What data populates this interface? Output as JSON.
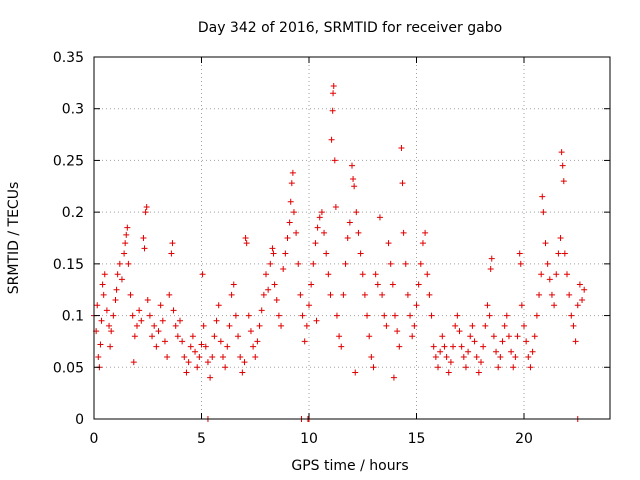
{
  "chart_data": {
    "type": "scatter",
    "title": "Day 342 of 2016, SRMTID for receiver gabo",
    "xlabel": "GPS time / hours",
    "ylabel": "SRMTID / TECUs",
    "xlim": [
      0,
      24
    ],
    "ylim": [
      0,
      0.35
    ],
    "xticks": [
      0,
      5,
      10,
      15,
      20
    ],
    "xtick_labels": [
      "0",
      "5",
      "10",
      "15",
      "20"
    ],
    "yticks": [
      0,
      0.05,
      0.1,
      0.15,
      0.2,
      0.25,
      0.3,
      0.35
    ],
    "ytick_labels": [
      "0",
      "0.05",
      "0.1",
      "0.15",
      "0.2",
      "0.25",
      "0.3",
      "0.35"
    ],
    "grid": true,
    "marker": "+",
    "series": [
      {
        "name": "SRMTID",
        "color": "#e00000",
        "points": [
          [
            0.0,
            0.1
          ],
          [
            0.1,
            0.085
          ],
          [
            0.15,
            0.11
          ],
          [
            0.2,
            0.06
          ],
          [
            0.25,
            0.05
          ],
          [
            0.3,
            0.072
          ],
          [
            0.35,
            0.095
          ],
          [
            0.4,
            0.13
          ],
          [
            0.45,
            0.12
          ],
          [
            0.5,
            0.14
          ],
          [
            0.6,
            0.105
          ],
          [
            0.7,
            0.09
          ],
          [
            0.75,
            0.07
          ],
          [
            0.8,
            0.085
          ],
          [
            0.9,
            0.1
          ],
          [
            1.0,
            0.115
          ],
          [
            1.05,
            0.125
          ],
          [
            1.1,
            0.14
          ],
          [
            1.2,
            0.15
          ],
          [
            1.3,
            0.135
          ],
          [
            1.4,
            0.16
          ],
          [
            1.45,
            0.17
          ],
          [
            1.5,
            0.178
          ],
          [
            1.55,
            0.185
          ],
          [
            1.6,
            0.15
          ],
          [
            1.7,
            0.12
          ],
          [
            1.8,
            0.1
          ],
          [
            1.85,
            0.055
          ],
          [
            1.9,
            0.08
          ],
          [
            2.0,
            0.09
          ],
          [
            2.1,
            0.105
          ],
          [
            2.2,
            0.095
          ],
          [
            2.3,
            0.175
          ],
          [
            2.35,
            0.165
          ],
          [
            2.4,
            0.2
          ],
          [
            2.45,
            0.205
          ],
          [
            2.5,
            0.115
          ],
          [
            2.6,
            0.1
          ],
          [
            2.7,
            0.08
          ],
          [
            2.8,
            0.09
          ],
          [
            2.9,
            0.07
          ],
          [
            3.0,
            0.085
          ],
          [
            3.1,
            0.11
          ],
          [
            3.2,
            0.095
          ],
          [
            3.3,
            0.075
          ],
          [
            3.4,
            0.06
          ],
          [
            3.5,
            0.12
          ],
          [
            3.6,
            0.16
          ],
          [
            3.65,
            0.17
          ],
          [
            3.7,
            0.105
          ],
          [
            3.8,
            0.09
          ],
          [
            3.9,
            0.08
          ],
          [
            4.0,
            0.095
          ],
          [
            4.1,
            0.075
          ],
          [
            4.2,
            0.06
          ],
          [
            4.3,
            0.045
          ],
          [
            4.4,
            0.055
          ],
          [
            4.5,
            0.07
          ],
          [
            4.6,
            0.08
          ],
          [
            4.7,
            0.065
          ],
          [
            4.8,
            0.05
          ],
          [
            4.9,
            0.06
          ],
          [
            5.0,
            0.072
          ],
          [
            5.05,
            0.14
          ],
          [
            5.1,
            0.09
          ],
          [
            5.2,
            0.07
          ],
          [
            5.3,
            0.055
          ],
          [
            5.4,
            0.04
          ],
          [
            5.5,
            0.06
          ],
          [
            5.6,
            0.08
          ],
          [
            5.7,
            0.095
          ],
          [
            5.8,
            0.11
          ],
          [
            5.9,
            0.075
          ],
          [
            6.0,
            0.06
          ],
          [
            6.1,
            0.05
          ],
          [
            6.2,
            0.07
          ],
          [
            6.3,
            0.09
          ],
          [
            6.4,
            0.12
          ],
          [
            6.5,
            0.13
          ],
          [
            6.6,
            0.1
          ],
          [
            6.7,
            0.08
          ],
          [
            6.8,
            0.06
          ],
          [
            6.9,
            0.045
          ],
          [
            7.0,
            0.055
          ],
          [
            7.05,
            0.175
          ],
          [
            7.1,
            0.17
          ],
          [
            7.2,
            0.1
          ],
          [
            7.3,
            0.085
          ],
          [
            7.4,
            0.07
          ],
          [
            7.5,
            0.06
          ],
          [
            7.6,
            0.075
          ],
          [
            7.7,
            0.09
          ],
          [
            7.8,
            0.105
          ],
          [
            7.9,
            0.12
          ],
          [
            8.0,
            0.14
          ],
          [
            8.1,
            0.125
          ],
          [
            8.2,
            0.15
          ],
          [
            8.3,
            0.165
          ],
          [
            8.4,
            0.13
          ],
          [
            8.5,
            0.115
          ],
          [
            8.6,
            0.1
          ],
          [
            8.7,
            0.09
          ],
          [
            8.8,
            0.145
          ],
          [
            8.9,
            0.16
          ],
          [
            9.0,
            0.175
          ],
          [
            9.1,
            0.19
          ],
          [
            9.15,
            0.21
          ],
          [
            9.2,
            0.228
          ],
          [
            9.25,
            0.238
          ],
          [
            9.3,
            0.2
          ],
          [
            9.4,
            0.18
          ],
          [
            9.5,
            0.15
          ],
          [
            9.6,
            0.12
          ],
          [
            9.7,
            0.1
          ],
          [
            9.8,
            0.075
          ],
          [
            9.9,
            0.09
          ],
          [
            10.0,
            0.11
          ],
          [
            10.1,
            0.13
          ],
          [
            10.2,
            0.15
          ],
          [
            10.3,
            0.17
          ],
          [
            10.4,
            0.185
          ],
          [
            10.5,
            0.195
          ],
          [
            10.6,
            0.2
          ],
          [
            10.7,
            0.18
          ],
          [
            10.8,
            0.16
          ],
          [
            10.9,
            0.14
          ],
          [
            11.0,
            0.12
          ],
          [
            11.05,
            0.27
          ],
          [
            11.1,
            0.298
          ],
          [
            11.12,
            0.315
          ],
          [
            11.15,
            0.322
          ],
          [
            11.2,
            0.25
          ],
          [
            11.25,
            0.205
          ],
          [
            11.3,
            0.1
          ],
          [
            11.4,
            0.08
          ],
          [
            11.5,
            0.07
          ],
          [
            11.6,
            0.12
          ],
          [
            11.7,
            0.15
          ],
          [
            11.8,
            0.175
          ],
          [
            11.9,
            0.19
          ],
          [
            12.0,
            0.245
          ],
          [
            12.05,
            0.232
          ],
          [
            12.1,
            0.225
          ],
          [
            12.2,
            0.2
          ],
          [
            12.3,
            0.18
          ],
          [
            12.4,
            0.16
          ],
          [
            12.5,
            0.14
          ],
          [
            12.6,
            0.12
          ],
          [
            12.7,
            0.1
          ],
          [
            12.8,
            0.08
          ],
          [
            12.9,
            0.06
          ],
          [
            13.0,
            0.05
          ],
          [
            13.1,
            0.14
          ],
          [
            13.2,
            0.13
          ],
          [
            13.3,
            0.195
          ],
          [
            13.4,
            0.12
          ],
          [
            13.5,
            0.1
          ],
          [
            13.6,
            0.09
          ],
          [
            13.7,
            0.17
          ],
          [
            13.8,
            0.15
          ],
          [
            13.9,
            0.13
          ],
          [
            14.0,
            0.1
          ],
          [
            14.1,
            0.085
          ],
          [
            14.2,
            0.07
          ],
          [
            14.3,
            0.262
          ],
          [
            14.35,
            0.228
          ],
          [
            14.4,
            0.18
          ],
          [
            14.5,
            0.15
          ],
          [
            14.6,
            0.12
          ],
          [
            14.7,
            0.1
          ],
          [
            14.8,
            0.08
          ],
          [
            14.9,
            0.09
          ],
          [
            15.0,
            0.11
          ],
          [
            15.1,
            0.13
          ],
          [
            15.2,
            0.15
          ],
          [
            15.3,
            0.17
          ],
          [
            15.4,
            0.18
          ],
          [
            15.5,
            0.14
          ],
          [
            15.6,
            0.12
          ],
          [
            15.7,
            0.1
          ],
          [
            15.8,
            0.07
          ],
          [
            15.9,
            0.06
          ],
          [
            16.0,
            0.05
          ],
          [
            16.1,
            0.065
          ],
          [
            16.2,
            0.08
          ],
          [
            16.3,
            0.07
          ],
          [
            16.4,
            0.06
          ],
          [
            16.5,
            0.045
          ],
          [
            16.6,
            0.055
          ],
          [
            16.7,
            0.07
          ],
          [
            16.8,
            0.09
          ],
          [
            16.9,
            0.1
          ],
          [
            17.0,
            0.085
          ],
          [
            17.1,
            0.07
          ],
          [
            17.2,
            0.06
          ],
          [
            17.3,
            0.05
          ],
          [
            17.4,
            0.065
          ],
          [
            17.5,
            0.08
          ],
          [
            17.6,
            0.09
          ],
          [
            17.7,
            0.075
          ],
          [
            17.8,
            0.06
          ],
          [
            17.9,
            0.045
          ],
          [
            18.0,
            0.055
          ],
          [
            18.1,
            0.07
          ],
          [
            18.2,
            0.09
          ],
          [
            18.3,
            0.11
          ],
          [
            18.4,
            0.1
          ],
          [
            18.45,
            0.145
          ],
          [
            18.5,
            0.155
          ],
          [
            18.6,
            0.08
          ],
          [
            18.7,
            0.065
          ],
          [
            18.8,
            0.05
          ],
          [
            18.9,
            0.06
          ],
          [
            19.0,
            0.075
          ],
          [
            19.1,
            0.09
          ],
          [
            19.2,
            0.1
          ],
          [
            19.3,
            0.08
          ],
          [
            19.4,
            0.065
          ],
          [
            19.5,
            0.05
          ],
          [
            19.6,
            0.06
          ],
          [
            19.7,
            0.08
          ],
          [
            19.8,
            0.16
          ],
          [
            19.85,
            0.15
          ],
          [
            19.9,
            0.11
          ],
          [
            20.0,
            0.09
          ],
          [
            20.1,
            0.075
          ],
          [
            20.2,
            0.06
          ],
          [
            20.3,
            0.05
          ],
          [
            20.4,
            0.065
          ],
          [
            20.5,
            0.08
          ],
          [
            20.6,
            0.1
          ],
          [
            20.7,
            0.12
          ],
          [
            20.8,
            0.14
          ],
          [
            20.85,
            0.215
          ],
          [
            20.9,
            0.2
          ],
          [
            21.0,
            0.17
          ],
          [
            21.1,
            0.15
          ],
          [
            21.2,
            0.135
          ],
          [
            21.3,
            0.12
          ],
          [
            21.4,
            0.11
          ],
          [
            21.5,
            0.14
          ],
          [
            21.6,
            0.16
          ],
          [
            21.7,
            0.175
          ],
          [
            21.75,
            0.258
          ],
          [
            21.8,
            0.245
          ],
          [
            21.85,
            0.23
          ],
          [
            21.9,
            0.16
          ],
          [
            22.0,
            0.14
          ],
          [
            22.1,
            0.12
          ],
          [
            22.2,
            0.1
          ],
          [
            22.3,
            0.09
          ],
          [
            22.4,
            0.075
          ],
          [
            22.5,
            0.11
          ],
          [
            22.6,
            0.13
          ],
          [
            22.7,
            0.115
          ],
          [
            22.8,
            0.125
          ],
          [
            8.35,
            0.16
          ],
          [
            10.35,
            0.095
          ],
          [
            12.15,
            0.045
          ],
          [
            13.95,
            0.04
          ],
          [
            9.65,
            0.0
          ],
          [
            9.95,
            0.0
          ],
          [
            10.0,
            0.0
          ],
          [
            5.3,
            0.0
          ],
          [
            22.5,
            0.0
          ]
        ]
      }
    ]
  }
}
